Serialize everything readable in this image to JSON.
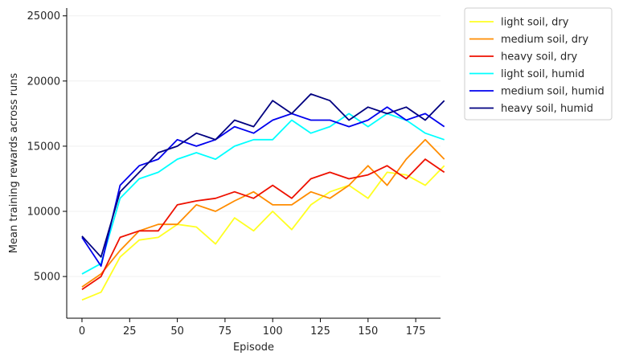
{
  "chart_data": {
    "type": "line",
    "title": "",
    "xlabel": "Episode",
    "ylabel": "Mean training rewards across runs",
    "xlim": [
      -8,
      188
    ],
    "ylim": [
      1800,
      25600
    ],
    "xticks": [
      0,
      25,
      50,
      75,
      100,
      125,
      150,
      175
    ],
    "yticks": [
      5000,
      10000,
      15000,
      20000,
      25000
    ],
    "xtick_labels": [
      "0",
      "25",
      "50",
      "75",
      "100",
      "125",
      "150",
      "175"
    ],
    "ytick_labels": [
      "5000",
      "10000",
      "15000",
      "20000",
      "25000"
    ],
    "grid": "horizontal",
    "legend_position": "outside-top-right",
    "x_start": 0,
    "x_step": 10,
    "series": [
      {
        "name": "light soil, dry",
        "color": "#ffff22",
        "values": [
          3200,
          3800,
          6500,
          7800,
          8000,
          9000,
          8800,
          7500,
          9500,
          8500,
          10000,
          8600,
          10500,
          11500,
          12000,
          11000,
          13000,
          12800,
          12000,
          13500
        ]
      },
      {
        "name": "medium soil, dry",
        "color": "#ff8c00",
        "values": [
          4200,
          5200,
          7000,
          8500,
          9000,
          9000,
          10500,
          10000,
          10800,
          11500,
          10500,
          10500,
          11500,
          11000,
          12000,
          13500,
          12000,
          14000,
          15500,
          14000
        ]
      },
      {
        "name": "heavy soil, dry",
        "color": "#ee1100",
        "values": [
          4000,
          5000,
          8000,
          8500,
          8500,
          10500,
          10800,
          11000,
          11500,
          11000,
          12000,
          11000,
          12500,
          13000,
          12500,
          12800,
          13500,
          12500,
          14000,
          13000
        ]
      },
      {
        "name": "light soil, humid",
        "color": "#00ffff",
        "values": [
          5200,
          6000,
          11000,
          12500,
          13000,
          14000,
          14500,
          14000,
          15000,
          15500,
          15500,
          17000,
          16000,
          16500,
          17500,
          16500,
          17500,
          17000,
          16000,
          15500
        ]
      },
      {
        "name": "medium soil, humid",
        "color": "#0000ee",
        "values": [
          8000,
          5800,
          12000,
          13500,
          14000,
          15500,
          15000,
          15500,
          16500,
          16000,
          17000,
          17500,
          17000,
          17000,
          16500,
          17000,
          18000,
          17000,
          17500,
          16500
        ]
      },
      {
        "name": "heavy soil, humid",
        "color": "#000080",
        "values": [
          8100,
          6500,
          11500,
          13000,
          14500,
          15000,
          16000,
          15500,
          17000,
          16500,
          18500,
          17500,
          19000,
          18500,
          17000,
          18000,
          17500,
          18000,
          17000,
          18500
        ]
      }
    ]
  }
}
